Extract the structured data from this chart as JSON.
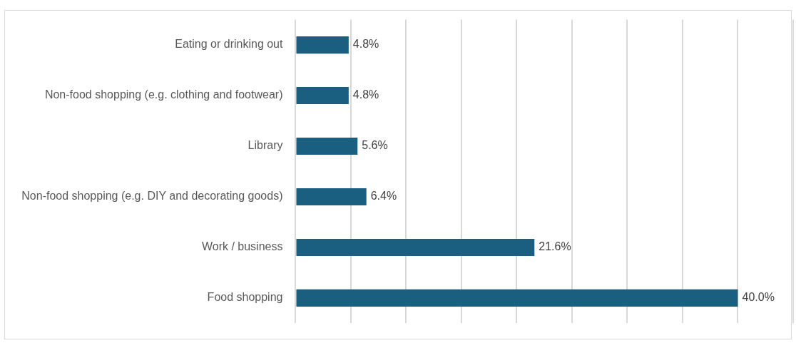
{
  "chart_data": {
    "type": "bar",
    "orientation": "horizontal",
    "categories": [
      "Eating or drinking out",
      "Non-food shopping (e.g. clothing and footwear)",
      "Library",
      "Non-food shopping (e.g. DIY and decorating goods)",
      "Work / business",
      "Food shopping"
    ],
    "values": [
      4.8,
      4.8,
      5.6,
      6.4,
      21.6,
      40.0
    ],
    "value_labels": [
      "4.8%",
      "4.8%",
      "5.6%",
      "6.4%",
      "21.6%",
      "40.0%"
    ],
    "color": "#1b5f80",
    "xlim": [
      0,
      45
    ],
    "xticks": [
      {
        "value": 0,
        "label": null
      },
      {
        "value": 5,
        "label": null
      },
      {
        "value": 10,
        "label": null
      },
      {
        "value": 15,
        "label": null
      },
      {
        "value": 20,
        "label": null
      },
      {
        "value": 25,
        "label": null
      },
      {
        "value": 30,
        "label": null
      },
      {
        "value": 35,
        "label": null
      },
      {
        "value": 40,
        "label": null
      },
      {
        "value": 45,
        "label": null
      }
    ],
    "grid": "x",
    "tick_labels": "y",
    "legend": false
  }
}
